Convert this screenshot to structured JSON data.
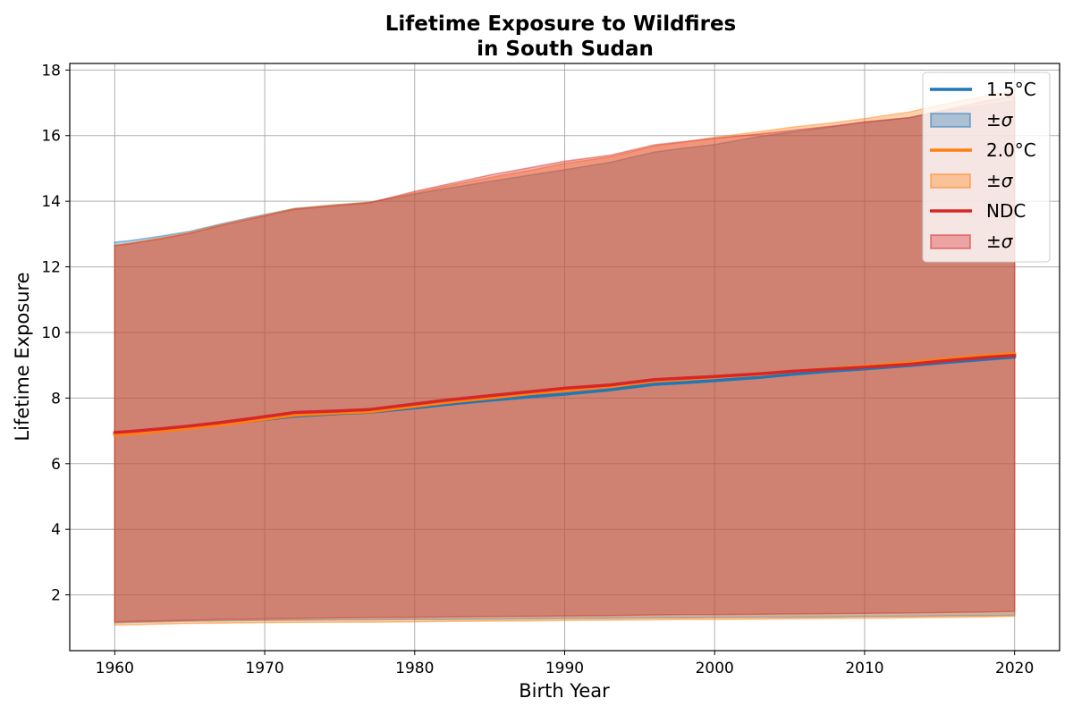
{
  "chart_data": {
    "type": "area",
    "title_line1": "Lifetime Exposure to Wildfires",
    "title_line2": "in South Sudan",
    "xlabel": "Birth Year",
    "ylabel": "Lifetime Exposure",
    "xlim": [
      1957,
      2023
    ],
    "ylim": [
      0.3,
      18.2
    ],
    "x_ticks": [
      1960,
      1970,
      1980,
      1990,
      2000,
      2010,
      2020
    ],
    "y_ticks": [
      2,
      4,
      6,
      8,
      10,
      12,
      14,
      16,
      18
    ],
    "grid": true,
    "legend_position": "top-right",
    "x": [
      1960,
      1961,
      1963,
      1965,
      1967,
      1969,
      1972,
      1975,
      1977,
      1980,
      1982,
      1985,
      1988,
      1990,
      1993,
      1996,
      1998,
      2000,
      2003,
      2005,
      2008,
      2010,
      2013,
      2015,
      2018,
      2020
    ],
    "series": [
      {
        "name": "1.5°C",
        "color": "#1f77b4",
        "mean": [
          6.92,
          6.96,
          7.02,
          7.1,
          7.2,
          7.3,
          7.45,
          7.53,
          7.57,
          7.7,
          7.8,
          7.93,
          8.05,
          8.12,
          8.25,
          8.42,
          8.47,
          8.53,
          8.63,
          8.72,
          8.83,
          8.89,
          8.99,
          9.07,
          9.18,
          9.25
        ],
        "upper": [
          12.75,
          12.8,
          12.93,
          13.08,
          13.3,
          13.5,
          13.78,
          13.9,
          13.97,
          14.22,
          14.38,
          14.6,
          14.82,
          14.96,
          15.18,
          15.5,
          15.62,
          15.73,
          15.97,
          16.1,
          16.28,
          16.4,
          16.55,
          16.73,
          16.93,
          17.05
        ],
        "lower": [
          1.15,
          1.16,
          1.18,
          1.2,
          1.21,
          1.22,
          1.23,
          1.24,
          1.24,
          1.25,
          1.25,
          1.26,
          1.27,
          1.28,
          1.29,
          1.3,
          1.3,
          1.31,
          1.32,
          1.32,
          1.33,
          1.34,
          1.35,
          1.36,
          1.37,
          1.38
        ],
        "band_label": "±σ"
      },
      {
        "name": "2.0°C",
        "color": "#ff7f0e",
        "mean": [
          6.87,
          6.91,
          6.99,
          7.08,
          7.18,
          7.3,
          7.48,
          7.55,
          7.58,
          7.75,
          7.86,
          8.0,
          8.15,
          8.23,
          8.35,
          8.52,
          8.58,
          8.64,
          8.72,
          8.81,
          8.9,
          8.97,
          9.08,
          9.17,
          9.29,
          9.35
        ],
        "upper": [
          12.65,
          12.72,
          12.88,
          13.05,
          13.28,
          13.48,
          13.78,
          13.9,
          13.97,
          14.25,
          14.45,
          14.72,
          14.97,
          15.15,
          15.35,
          15.68,
          15.8,
          15.95,
          16.12,
          16.25,
          16.4,
          16.52,
          16.72,
          16.93,
          17.2,
          17.37
        ],
        "lower": [
          1.08,
          1.09,
          1.11,
          1.13,
          1.14,
          1.15,
          1.16,
          1.17,
          1.17,
          1.18,
          1.19,
          1.2,
          1.21,
          1.22,
          1.23,
          1.24,
          1.25,
          1.25,
          1.26,
          1.27,
          1.28,
          1.29,
          1.3,
          1.31,
          1.33,
          1.35
        ],
        "band_label": "±σ"
      },
      {
        "name": "NDC",
        "color": "#d62728",
        "mean": [
          6.95,
          6.98,
          7.06,
          7.15,
          7.25,
          7.37,
          7.56,
          7.61,
          7.65,
          7.82,
          7.93,
          8.07,
          8.21,
          8.3,
          8.4,
          8.56,
          8.61,
          8.66,
          8.74,
          8.81,
          8.89,
          8.94,
          9.03,
          9.12,
          9.24,
          9.3
        ],
        "upper": [
          12.65,
          12.7,
          12.85,
          13.02,
          13.25,
          13.45,
          13.75,
          13.87,
          13.95,
          14.3,
          14.5,
          14.8,
          15.05,
          15.22,
          15.4,
          15.72,
          15.82,
          15.92,
          16.05,
          16.15,
          16.3,
          16.42,
          16.55,
          16.75,
          17.05,
          17.2
        ],
        "lower": [
          1.18,
          1.19,
          1.21,
          1.23,
          1.25,
          1.26,
          1.28,
          1.3,
          1.31,
          1.32,
          1.33,
          1.34,
          1.35,
          1.36,
          1.37,
          1.39,
          1.4,
          1.4,
          1.41,
          1.42,
          1.43,
          1.44,
          1.45,
          1.46,
          1.48,
          1.5
        ],
        "band_label": "±σ"
      }
    ]
  }
}
